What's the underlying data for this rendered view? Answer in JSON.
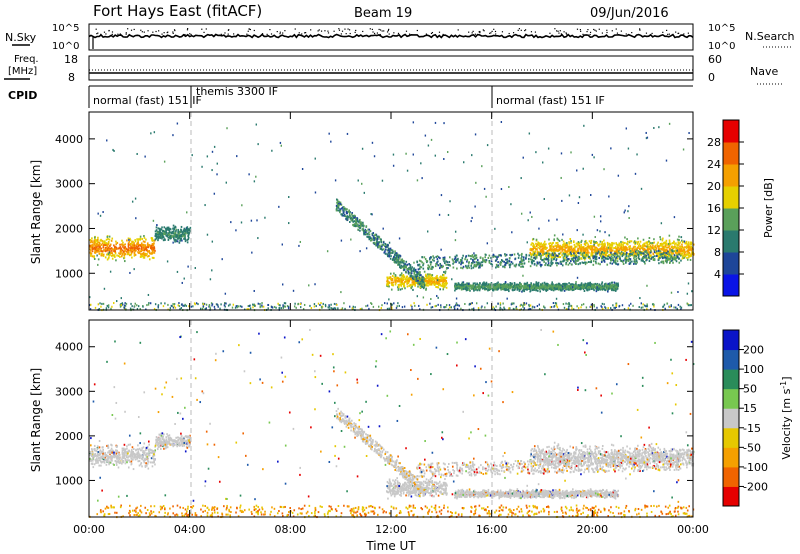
{
  "header": {
    "station": "Fort Hays East (fitACF)",
    "beam": "Beam 19",
    "date": "09/Jun/2016"
  },
  "top_panels": {
    "nsky_label": "N.Sky",
    "nsearch_label": "N.Search",
    "nsky_ticks": [
      "10^5",
      "10^0"
    ],
    "nsearch_ticks": [
      "10^5",
      "10^0"
    ],
    "freq_label_1": "Freq.",
    "freq_label_2": "[MHz]",
    "freq_ticks": [
      "18",
      "8"
    ],
    "nave_label": "Nave",
    "nave_ticks": [
      "60",
      "0"
    ],
    "cpid_label": "CPID",
    "cpid_segments": [
      {
        "label": "normal (fast) 151 IF",
        "start_hour": 0,
        "end_hour": 4
      },
      {
        "label": "themis 3300 IF",
        "start_hour": 4,
        "end_hour": 16
      },
      {
        "label": "normal (fast) 151 IF",
        "start_hour": 16,
        "end_hour": 24
      }
    ]
  },
  "colors": {
    "power_scale": [
      "#0a14e6",
      "#1e4699",
      "#2a7a6e",
      "#5aa05a",
      "#e6d000",
      "#f5a000",
      "#f06400",
      "#e60000"
    ],
    "velocity_scale": [
      "#e60000",
      "#f06400",
      "#f5a000",
      "#e6c800",
      "#c8c8c8",
      "#78c850",
      "#2a8c5a",
      "#1e5aaa",
      "#0a14c8"
    ],
    "ground_scatter": "#aaaaaa"
  },
  "chart_data": [
    {
      "type": "heatmap",
      "panel": "power",
      "xlabel": "Time UT",
      "ylabel": "Slant Range [km]",
      "xlim": [
        0,
        24
      ],
      "ylim": [
        180,
        4600
      ],
      "x_ticks": [
        "00:00",
        "04:00",
        "08:00",
        "12:00",
        "16:00",
        "20:00",
        "00:00"
      ],
      "y_ticks": [
        1000,
        2000,
        3000,
        4000
      ],
      "colorbar": {
        "label": "Power [dB]",
        "ticks": [
          4,
          8,
          12,
          16,
          20,
          24,
          28
        ],
        "range": [
          0,
          32
        ]
      },
      "regions": [
        {
          "t0": 0.0,
          "t1": 2.6,
          "r_center": 1580,
          "r_width": 340,
          "value_center": 26,
          "value_edge": 12
        },
        {
          "t0": 2.6,
          "t1": 4.0,
          "r_center": 1900,
          "r_width": 220,
          "value_center": 12,
          "value_edge": 8
        },
        {
          "t0": 11.8,
          "t1": 14.2,
          "r_center": 850,
          "r_width": 260,
          "value_center": 22,
          "value_edge": 10
        },
        {
          "t0": 14.5,
          "t1": 21.0,
          "r_center": 720,
          "r_width": 120,
          "value_center": 14,
          "value_edge": 8
        },
        {
          "t0": 17.5,
          "t1": 24.0,
          "r_center": 1550,
          "r_width": 330,
          "value_center": 22,
          "value_edge": 12
        }
      ]
    },
    {
      "type": "heatmap",
      "panel": "velocity",
      "xlabel": "Time UT",
      "ylabel": "Slant Range [km]",
      "xlim": [
        0,
        24
      ],
      "ylim": [
        180,
        4600
      ],
      "x_ticks": [
        "00:00",
        "04:00",
        "08:00",
        "12:00",
        "16:00",
        "20:00",
        "00:00"
      ],
      "y_ticks": [
        1000,
        2000,
        3000,
        4000
      ],
      "colorbar": {
        "label": "Velocity [m s^-1]",
        "ticks": [
          200,
          100,
          50,
          15,
          -15,
          -50,
          -100,
          -200
        ]
      },
      "dominant_value_range": [
        -15,
        15
      ]
    }
  ]
}
